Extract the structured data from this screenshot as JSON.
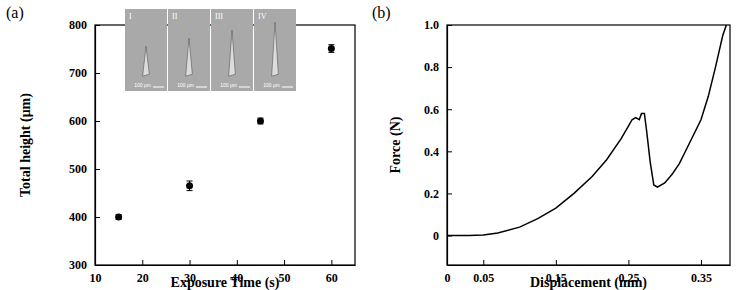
{
  "chart_data": [
    {
      "type": "scatter",
      "title": "(a)",
      "x_label": "Exposure Time (s)",
      "y_label": "Total height (μm)",
      "x": [
        15,
        30,
        45,
        60
      ],
      "values": [
        400,
        465,
        600,
        751
      ],
      "errors": [
        5,
        10,
        6,
        8
      ],
      "color": "#000000",
      "marker": "circle",
      "xlim": [
        10,
        65
      ],
      "xticks": [
        10,
        20,
        30,
        40,
        50,
        60
      ],
      "ylim": [
        300,
        800
      ],
      "yticks": [
        300,
        400,
        500,
        600,
        700,
        800
      ],
      "insets": [
        {
          "label": "I",
          "scale_bar": "100 μm"
        },
        {
          "label": "II",
          "scale_bar": "100 μm"
        },
        {
          "label": "III",
          "scale_bar": "100 μm"
        },
        {
          "label": "IV",
          "scale_bar": "100 μm"
        }
      ]
    },
    {
      "type": "line",
      "title": "(b)",
      "x_label": "Displacement  (mm)",
      "y_label": "Force  (N)",
      "x": [
        0,
        0.03,
        0.05,
        0.07,
        0.1,
        0.125,
        0.15,
        0.175,
        0.2,
        0.22,
        0.24,
        0.25,
        0.255,
        0.26,
        0.265,
        0.268,
        0.272,
        0.275,
        0.28,
        0.285,
        0.29,
        0.3,
        0.31,
        0.32,
        0.33,
        0.34,
        0.35,
        0.36,
        0.37,
        0.38,
        0.385
      ],
      "values": [
        0,
        0,
        0.003,
        0.012,
        0.04,
        0.08,
        0.13,
        0.2,
        0.28,
        0.36,
        0.46,
        0.52,
        0.55,
        0.56,
        0.55,
        0.58,
        0.58,
        0.5,
        0.35,
        0.24,
        0.23,
        0.25,
        0.29,
        0.34,
        0.41,
        0.48,
        0.55,
        0.66,
        0.8,
        0.95,
        1.0
      ],
      "color": "#000000",
      "line_style": "solid",
      "xlim": [
        0,
        0.39
      ],
      "xticks": [
        0,
        0.05,
        0.15,
        0.25,
        0.35
      ],
      "ylim": [
        -0.14,
        1.0
      ],
      "yticks": [
        0,
        0.2,
        0.4,
        0.6,
        0.8,
        {
          "value": 1.0,
          "label": "1.0"
        }
      ]
    }
  ]
}
